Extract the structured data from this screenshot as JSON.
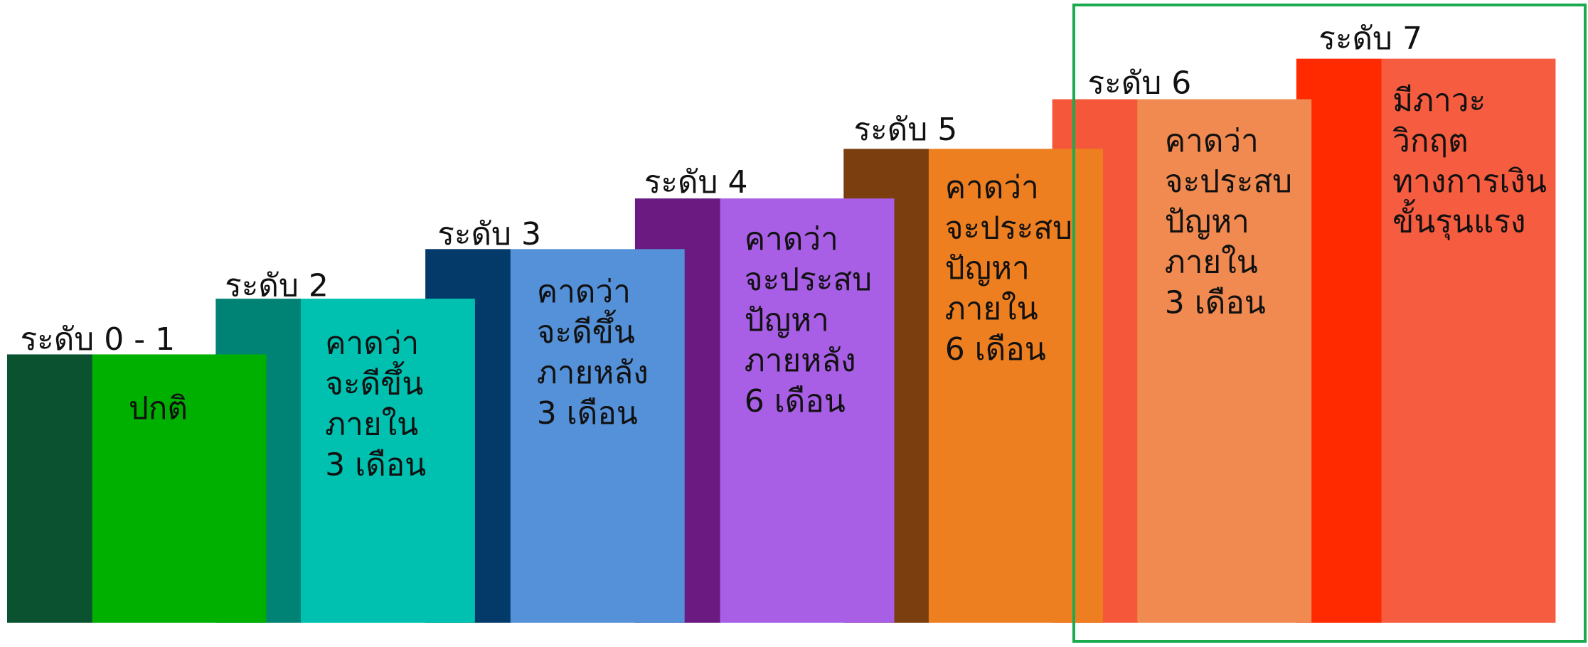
{
  "levels": [
    {
      "label": "ระดับ 0 - 1",
      "description": [
        "ปกติ"
      ],
      "dark": "#0b5230",
      "light": "#00b000"
    },
    {
      "label": "ระดับ 2",
      "description": [
        "คาดว่า",
        "จะดีขึ้น",
        "ภายใน",
        "3 เดือน"
      ],
      "dark": "#008274",
      "light": "#00c0b0"
    },
    {
      "label": "ระดับ 3",
      "description": [
        "คาดว่า",
        "จะดีขึ้น",
        "ภายหลัง",
        "3 เดือน"
      ],
      "dark": "#033a6a",
      "light": "#5591d8"
    },
    {
      "label": "ระดับ 4",
      "description": [
        "คาดว่า",
        "จะประสบ",
        "ปัญหา",
        "ภายหลัง",
        "6 เดือน"
      ],
      "dark": "#6a1a80",
      "light": "#a95ee6"
    },
    {
      "label": "ระดับ 5",
      "description": [
        "คาดว่า",
        "จะประสบ",
        "ปัญหา",
        "ภายใน",
        "6 เดือน"
      ],
      "dark": "#7a3e0f",
      "light": "#ee7f20"
    },
    {
      "label": "ระดับ 6",
      "description": [
        "คาดว่า",
        "จะประสบ",
        "ปัญหา",
        "ภายใน",
        "3 เดือน"
      ],
      "dark": "#f4573a",
      "light": "#f08a50"
    },
    {
      "label": "ระดับ 7",
      "description": [
        "มีภาวะ",
        "วิกฤต",
        "ทางการเงิน",
        "ขั้นรุนแรง"
      ],
      "dark": "#ff2a00",
      "light": "#f65c40"
    }
  ]
}
